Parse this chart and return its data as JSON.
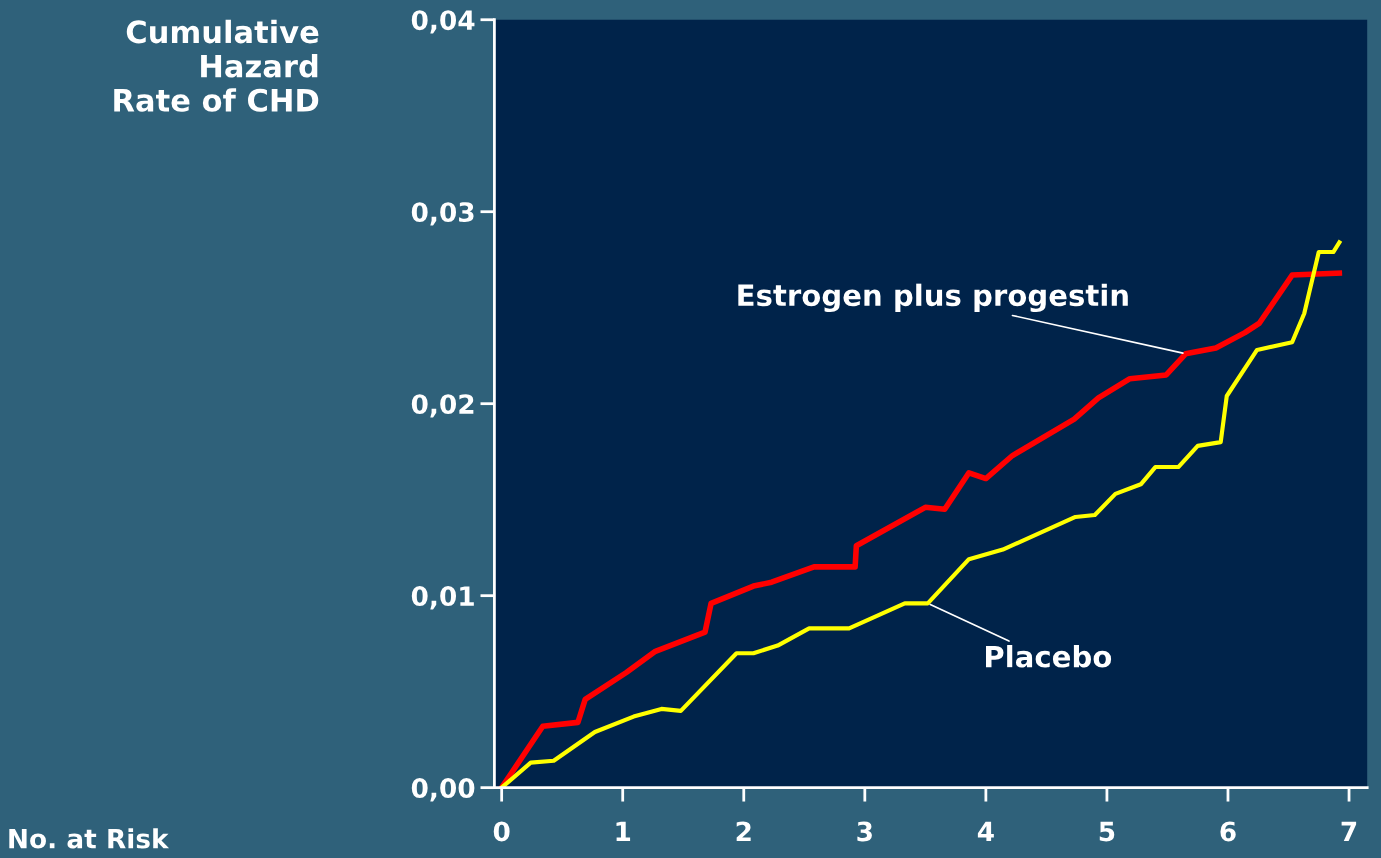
{
  "chart_data": {
    "type": "line",
    "ylabel": "Cumulative\nHazard\nRate of CHD",
    "xlim": [
      -0.06,
      7.15
    ],
    "xticks": [
      0,
      1,
      2,
      3,
      4,
      5,
      6,
      7
    ],
    "ylim": [
      0,
      0.04
    ],
    "yticks": [
      {
        "value": 0,
        "label": "0,00"
      },
      {
        "value": 0.01,
        "label": "0,01"
      },
      {
        "value": 0.02,
        "label": "0,02"
      },
      {
        "value": 0.03,
        "label": "0,03"
      },
      {
        "value": 0.04,
        "label": "0,04"
      }
    ],
    "grid": false,
    "legend": false,
    "marker": "none",
    "line_style": "solid",
    "series": [
      {
        "name": "Estrogen plus progestin",
        "color": "#ff0000",
        "x": [
          0,
          0.34,
          0.63,
          0.69,
          1.03,
          1.27,
          1.68,
          1.73,
          2.08,
          2.23,
          2.58,
          2.92,
          2.93,
          3.5,
          3.66,
          3.86,
          4.0,
          4.22,
          4.73,
          4.93,
          5.19,
          5.49,
          5.65,
          5.9,
          6.14,
          6.26,
          6.53,
          6.92
        ],
        "values": [
          0,
          0.0032,
          0.0034,
          0.0046,
          0.006,
          0.0071,
          0.0081,
          0.0096,
          0.0105,
          0.0107,
          0.0115,
          0.0115,
          0.0126,
          0.0146,
          0.0145,
          0.0164,
          0.0161,
          0.0173,
          0.0192,
          0.0203,
          0.0213,
          0.0215,
          0.0226,
          0.0229,
          0.0237,
          0.0242,
          0.0267,
          0.0268
        ]
      },
      {
        "name": "Placebo",
        "color": "#ffff00",
        "x": [
          0,
          0.24,
          0.43,
          0.77,
          1.09,
          1.32,
          1.48,
          1.94,
          2.08,
          2.28,
          2.54,
          2.87,
          3.33,
          3.52,
          3.86,
          4.14,
          4.74,
          4.9,
          5.07,
          5.28,
          5.4,
          5.59,
          5.75,
          5.94,
          5.99,
          6.24,
          6.53,
          6.63,
          6.75,
          6.87,
          6.92
        ],
        "values": [
          0,
          0.0013,
          0.0014,
          0.0029,
          0.0037,
          0.0041,
          0.004,
          0.007,
          0.007,
          0.0074,
          0.0083,
          0.0083,
          0.0096,
          0.0096,
          0.0119,
          0.0124,
          0.0141,
          0.0142,
          0.0153,
          0.0158,
          0.0167,
          0.0167,
          0.0178,
          0.018,
          0.0204,
          0.0228,
          0.0232,
          0.0247,
          0.0279,
          0.0279,
          0.0284
        ]
      }
    ],
    "annotations": [
      "No. at Risk"
    ]
  }
}
